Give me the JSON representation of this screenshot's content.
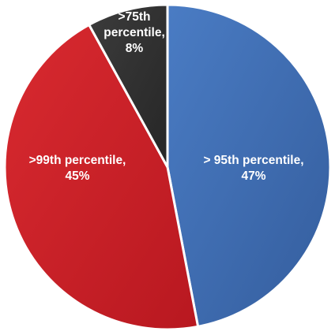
{
  "chart_data": {
    "type": "pie",
    "title": "",
    "slices": [
      {
        "label": "> 95th percentile,",
        "value_label": "47%",
        "value": 47,
        "color": "#3f6eb5"
      },
      {
        "label": ">99th percentile,",
        "value_label": "45%",
        "value": 45,
        "color": "#cf2027"
      },
      {
        "label": ">75th percentile,",
        "value_label": "8%",
        "value": 8,
        "color": "#303030"
      }
    ]
  }
}
